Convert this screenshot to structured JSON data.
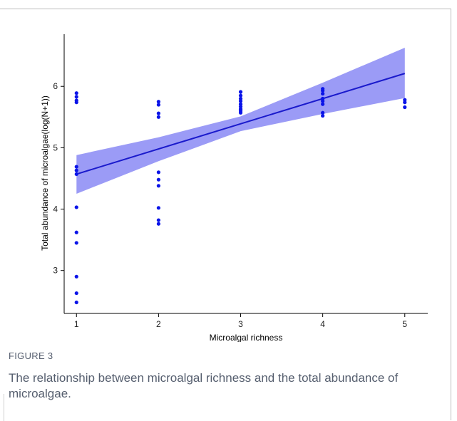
{
  "chart_data": {
    "type": "scatter",
    "xlabel": "Microalgal richness",
    "ylabel": "Total abundance of microalgae(log(N+1))",
    "xlim": [
      0.85,
      5.28
    ],
    "ylim": [
      2.3,
      6.85
    ],
    "x_ticks": [
      1,
      2,
      3,
      4,
      5
    ],
    "y_ticks": [
      3,
      4,
      5,
      6
    ],
    "grid": false,
    "point_color": "#0a14e8",
    "line_color": "#1a1acc",
    "band_color": "#8a8af5",
    "points": [
      {
        "x": 1,
        "y": 5.89
      },
      {
        "x": 1,
        "y": 5.83
      },
      {
        "x": 1,
        "y": 5.77
      },
      {
        "x": 1,
        "y": 5.74
      },
      {
        "x": 1,
        "y": 4.69
      },
      {
        "x": 1,
        "y": 4.63
      },
      {
        "x": 1,
        "y": 4.57
      },
      {
        "x": 1,
        "y": 4.03
      },
      {
        "x": 1,
        "y": 3.62
      },
      {
        "x": 1,
        "y": 3.45
      },
      {
        "x": 1,
        "y": 2.9
      },
      {
        "x": 1,
        "y": 2.63
      },
      {
        "x": 1,
        "y": 2.48
      },
      {
        "x": 2,
        "y": 5.75
      },
      {
        "x": 2,
        "y": 5.7
      },
      {
        "x": 2,
        "y": 5.56
      },
      {
        "x": 2,
        "y": 5.5
      },
      {
        "x": 2,
        "y": 4.6
      },
      {
        "x": 2,
        "y": 4.48
      },
      {
        "x": 2,
        "y": 4.38
      },
      {
        "x": 2,
        "y": 4.02
      },
      {
        "x": 2,
        "y": 3.82
      },
      {
        "x": 2,
        "y": 3.76
      },
      {
        "x": 3,
        "y": 5.91
      },
      {
        "x": 3,
        "y": 5.85
      },
      {
        "x": 3,
        "y": 5.8
      },
      {
        "x": 3,
        "y": 5.76
      },
      {
        "x": 3,
        "y": 5.71
      },
      {
        "x": 3,
        "y": 5.67
      },
      {
        "x": 3,
        "y": 5.63
      },
      {
        "x": 3,
        "y": 5.6
      },
      {
        "x": 3,
        "y": 5.57
      },
      {
        "x": 4,
        "y": 5.96
      },
      {
        "x": 4,
        "y": 5.93
      },
      {
        "x": 4,
        "y": 5.88
      },
      {
        "x": 4,
        "y": 5.8
      },
      {
        "x": 4,
        "y": 5.76
      },
      {
        "x": 4,
        "y": 5.71
      },
      {
        "x": 4,
        "y": 5.57
      },
      {
        "x": 4,
        "y": 5.52
      },
      {
        "x": 5,
        "y": 5.78
      },
      {
        "x": 5,
        "y": 5.74
      },
      {
        "x": 5,
        "y": 5.66
      }
    ],
    "fit_line": {
      "x": [
        1,
        5
      ],
      "y": [
        4.57,
        6.21
      ]
    },
    "confidence_band": {
      "x": [
        1,
        2,
        3,
        4,
        5
      ],
      "lower": [
        4.25,
        4.78,
        5.27,
        5.55,
        5.81
      ],
      "upper": [
        4.88,
        5.17,
        5.51,
        6.06,
        6.63
      ]
    }
  },
  "figure": {
    "label": "FIGURE 3",
    "caption": "The relationship between microalgal richness and the total abundance of microalgae."
  }
}
